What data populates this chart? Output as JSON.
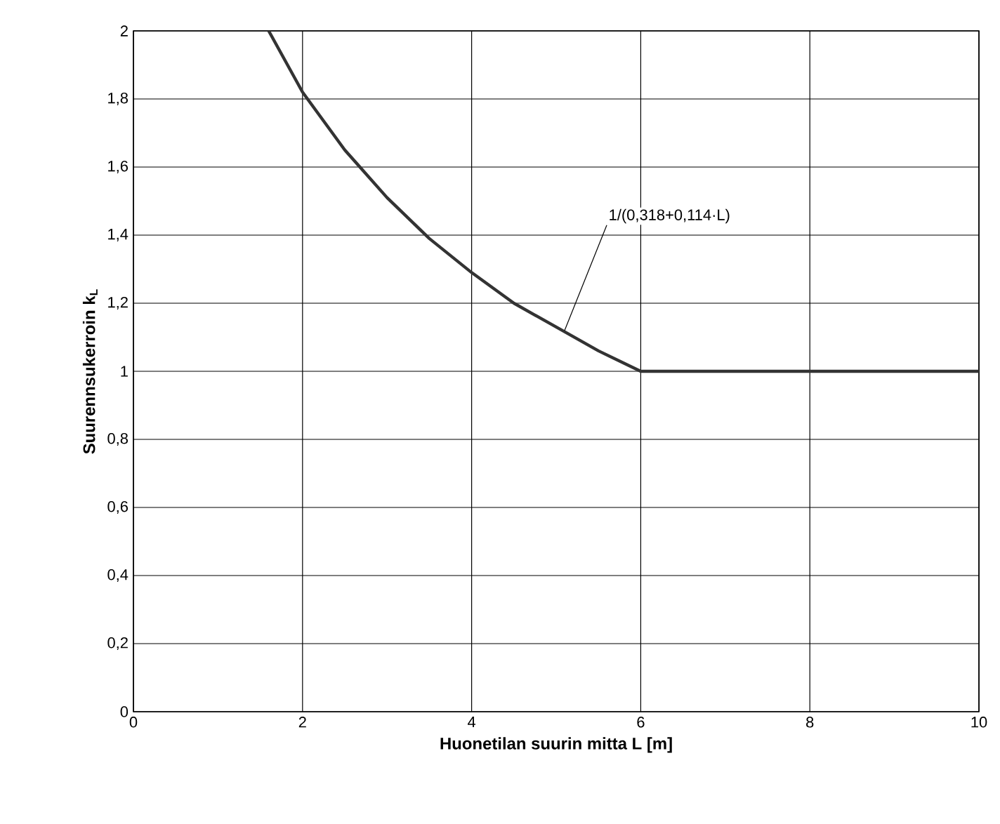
{
  "chart_data": {
    "type": "line",
    "xlabel": "Huonetilan suurin mitta L [m]",
    "ylabel": "Suurennsukerroin k$_{L}$",
    "x": [
      1.6,
      2,
      2.5,
      3,
      3.5,
      4,
      4.5,
      5,
      5.5,
      6,
      10
    ],
    "series": [
      {
        "color": "#333333",
        "values": [
          2.0,
          1.82,
          1.65,
          1.51,
          1.39,
          1.29,
          1.2,
          1.13,
          1.06,
          1.0,
          1.0
        ]
      }
    ],
    "xlim": [
      0,
      10
    ],
    "ylim": [
      0,
      2
    ],
    "xticks": [
      0,
      2,
      4,
      6,
      8,
      10
    ],
    "yticks": [
      0,
      {
        "value": 0.2,
        "label": "0,2"
      },
      {
        "value": 0.4,
        "label": "0,4"
      },
      {
        "value": 0.6,
        "label": "0,6"
      },
      {
        "value": 0.8,
        "label": "0,8"
      },
      1,
      {
        "value": 1.2,
        "label": "1,2"
      },
      {
        "value": 1.4,
        "label": "1,4"
      },
      {
        "value": 1.6,
        "label": "1,6"
      },
      {
        "value": 1.8,
        "label": "1,8"
      },
      2
    ],
    "annotations": [
      {
        "text": "1/(0,318+0,114·L)",
        "x": 5.1,
        "y": 1.12
      }
    ],
    "grid": true,
    "marker": "none",
    "line_style": "solid"
  }
}
